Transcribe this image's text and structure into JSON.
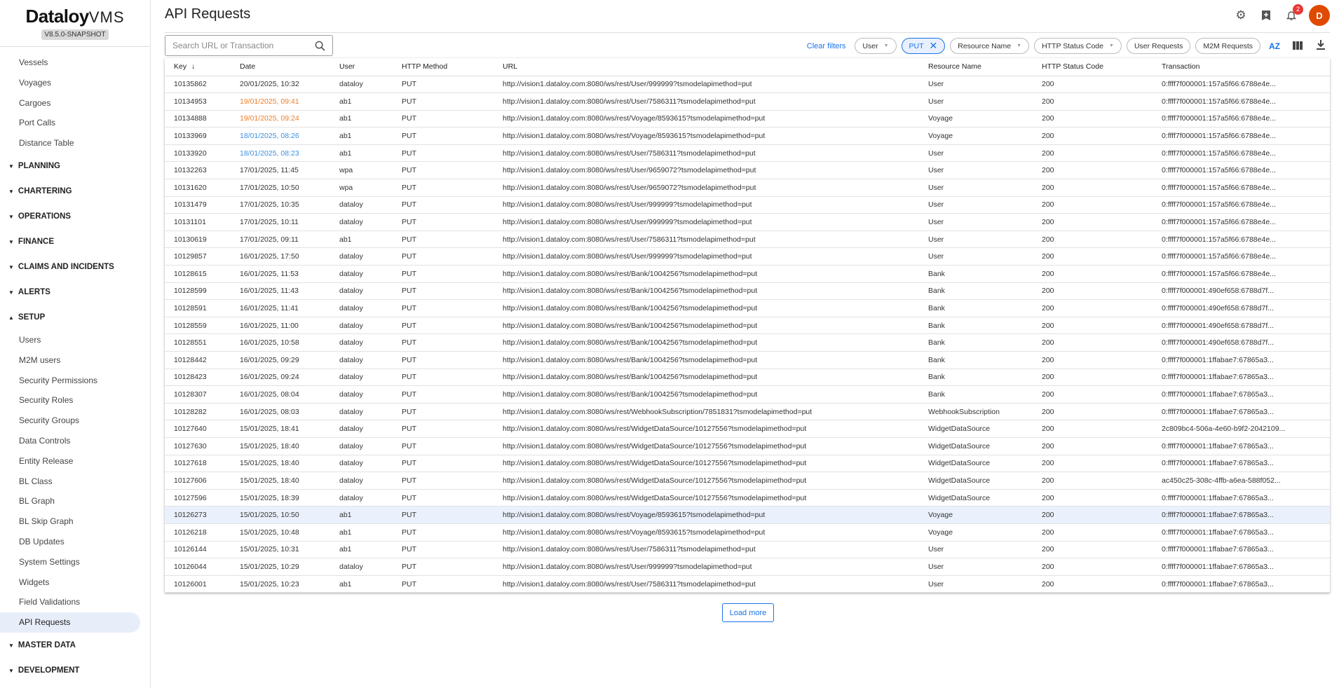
{
  "brand": {
    "name": "Dataloy",
    "suffix": "VMS",
    "version": "V8.5.0-SNAPSHOT"
  },
  "sidebar": {
    "items": [
      "Vessels",
      "Voyages",
      "Cargoes",
      "Port Calls",
      "Distance Table"
    ],
    "sections": [
      "PLANNING",
      "CHARTERING",
      "OPERATIONS",
      "FINANCE",
      "CLAIMS AND INCIDENTS",
      "ALERTS",
      "SETUP"
    ],
    "setup_items": [
      "Users",
      "M2M users",
      "Security Permissions",
      "Security Roles",
      "Security Groups",
      "Data Controls",
      "Entity Release",
      "BL Class",
      "BL Graph",
      "BL Skip Graph",
      "DB Updates",
      "System Settings",
      "Widgets",
      "Field Validations",
      "API Requests"
    ],
    "active": "API Requests",
    "bottom_sections": [
      "MASTER DATA",
      "DEVELOPMENT"
    ]
  },
  "header": {
    "title": "API Requests",
    "notification_count": "2",
    "avatar_initial": "D"
  },
  "filters": {
    "search_placeholder": "Search URL or Transaction",
    "clear": "Clear filters",
    "user": "User",
    "method_selected": "PUT",
    "resource": "Resource Name",
    "status": "HTTP Status Code",
    "user_requests": "User Requests",
    "m2m_requests": "M2M Requests",
    "sort_icon": "AZ"
  },
  "table": {
    "columns": [
      "Key",
      "Date",
      "User",
      "HTTP Method",
      "URL",
      "Resource Name",
      "HTTP Status Code",
      "Transaction"
    ],
    "sort_column": "Key",
    "sort_direction": "descending",
    "rows": [
      [
        "10135862",
        "20/01/2025, 10:32",
        "dataloy",
        "PUT",
        "http://vision1.dataloy.com:8080/ws/rest/User/999999?tsmodelapimethod=put",
        "User",
        "200",
        "0:ffff7f000001:157a5f66:6788e4e..."
      ],
      [
        "10134953",
        "19/01/2025, 09:41",
        "ab1",
        "PUT",
        "http://vision1.dataloy.com:8080/ws/rest/User/7586311?tsmodelapimethod=put",
        "User",
        "200",
        "0:ffff7f000001:157a5f66:6788e4e..."
      ],
      [
        "10134888",
        "19/01/2025, 09:24",
        "ab1",
        "PUT",
        "http://vision1.dataloy.com:8080/ws/rest/Voyage/8593615?tsmodelapimethod=put",
        "Voyage",
        "200",
        "0:ffff7f000001:157a5f66:6788e4e..."
      ],
      [
        "10133969",
        "18/01/2025, 08:26",
        "ab1",
        "PUT",
        "http://vision1.dataloy.com:8080/ws/rest/Voyage/8593615?tsmodelapimethod=put",
        "Voyage",
        "200",
        "0:ffff7f000001:157a5f66:6788e4e..."
      ],
      [
        "10133920",
        "18/01/2025, 08:23",
        "ab1",
        "PUT",
        "http://vision1.dataloy.com:8080/ws/rest/User/7586311?tsmodelapimethod=put",
        "User",
        "200",
        "0:ffff7f000001:157a5f66:6788e4e..."
      ],
      [
        "10132263",
        "17/01/2025, 11:45",
        "wpa",
        "PUT",
        "http://vision1.dataloy.com:8080/ws/rest/User/9659072?tsmodelapimethod=put",
        "User",
        "200",
        "0:ffff7f000001:157a5f66:6788e4e..."
      ],
      [
        "10131620",
        "17/01/2025, 10:50",
        "wpa",
        "PUT",
        "http://vision1.dataloy.com:8080/ws/rest/User/9659072?tsmodelapimethod=put",
        "User",
        "200",
        "0:ffff7f000001:157a5f66:6788e4e..."
      ],
      [
        "10131479",
        "17/01/2025, 10:35",
        "dataloy",
        "PUT",
        "http://vision1.dataloy.com:8080/ws/rest/User/999999?tsmodelapimethod=put",
        "User",
        "200",
        "0:ffff7f000001:157a5f66:6788e4e..."
      ],
      [
        "10131101",
        "17/01/2025, 10:11",
        "dataloy",
        "PUT",
        "http://vision1.dataloy.com:8080/ws/rest/User/999999?tsmodelapimethod=put",
        "User",
        "200",
        "0:ffff7f000001:157a5f66:6788e4e..."
      ],
      [
        "10130619",
        "17/01/2025, 09:11",
        "ab1",
        "PUT",
        "http://vision1.dataloy.com:8080/ws/rest/User/7586311?tsmodelapimethod=put",
        "User",
        "200",
        "0:ffff7f000001:157a5f66:6788e4e..."
      ],
      [
        "10129857",
        "16/01/2025, 17:50",
        "dataloy",
        "PUT",
        "http://vision1.dataloy.com:8080/ws/rest/User/999999?tsmodelapimethod=put",
        "User",
        "200",
        "0:ffff7f000001:157a5f66:6788e4e..."
      ],
      [
        "10128615",
        "16/01/2025, 11:53",
        "dataloy",
        "PUT",
        "http://vision1.dataloy.com:8080/ws/rest/Bank/1004256?tsmodelapimethod=put",
        "Bank",
        "200",
        "0:ffff7f000001:157a5f66:6788e4e..."
      ],
      [
        "10128599",
        "16/01/2025, 11:43",
        "dataloy",
        "PUT",
        "http://vision1.dataloy.com:8080/ws/rest/Bank/1004256?tsmodelapimethod=put",
        "Bank",
        "200",
        "0:ffff7f000001:490ef658:6788d7f..."
      ],
      [
        "10128591",
        "16/01/2025, 11:41",
        "dataloy",
        "PUT",
        "http://vision1.dataloy.com:8080/ws/rest/Bank/1004256?tsmodelapimethod=put",
        "Bank",
        "200",
        "0:ffff7f000001:490ef658:6788d7f..."
      ],
      [
        "10128559",
        "16/01/2025, 11:00",
        "dataloy",
        "PUT",
        "http://vision1.dataloy.com:8080/ws/rest/Bank/1004256?tsmodelapimethod=put",
        "Bank",
        "200",
        "0:ffff7f000001:490ef658:6788d7f..."
      ],
      [
        "10128551",
        "16/01/2025, 10:58",
        "dataloy",
        "PUT",
        "http://vision1.dataloy.com:8080/ws/rest/Bank/1004256?tsmodelapimethod=put",
        "Bank",
        "200",
        "0:ffff7f000001:490ef658:6788d7f..."
      ],
      [
        "10128442",
        "16/01/2025, 09:29",
        "dataloy",
        "PUT",
        "http://vision1.dataloy.com:8080/ws/rest/Bank/1004256?tsmodelapimethod=put",
        "Bank",
        "200",
        "0:ffff7f000001:1ffabae7:67865a3..."
      ],
      [
        "10128423",
        "16/01/2025, 09:24",
        "dataloy",
        "PUT",
        "http://vision1.dataloy.com:8080/ws/rest/Bank/1004256?tsmodelapimethod=put",
        "Bank",
        "200",
        "0:ffff7f000001:1ffabae7:67865a3..."
      ],
      [
        "10128307",
        "16/01/2025, 08:04",
        "dataloy",
        "PUT",
        "http://vision1.dataloy.com:8080/ws/rest/Bank/1004256?tsmodelapimethod=put",
        "Bank",
        "200",
        "0:ffff7f000001:1ffabae7:67865a3..."
      ],
      [
        "10128282",
        "16/01/2025, 08:03",
        "dataloy",
        "PUT",
        "http://vision1.dataloy.com:8080/ws/rest/WebhookSubscription/7851831?tsmodelapimethod=put",
        "WebhookSubscription",
        "200",
        "0:ffff7f000001:1ffabae7:67865a3..."
      ],
      [
        "10127640",
        "15/01/2025, 18:41",
        "dataloy",
        "PUT",
        "http://vision1.dataloy.com:8080/ws/rest/WidgetDataSource/10127556?tsmodelapimethod=put",
        "WidgetDataSource",
        "200",
        "2c809bc4-506a-4e60-b9f2-2042109..."
      ],
      [
        "10127630",
        "15/01/2025, 18:40",
        "dataloy",
        "PUT",
        "http://vision1.dataloy.com:8080/ws/rest/WidgetDataSource/10127556?tsmodelapimethod=put",
        "WidgetDataSource",
        "200",
        "0:ffff7f000001:1ffabae7:67865a3..."
      ],
      [
        "10127618",
        "15/01/2025, 18:40",
        "dataloy",
        "PUT",
        "http://vision1.dataloy.com:8080/ws/rest/WidgetDataSource/10127556?tsmodelapimethod=put",
        "WidgetDataSource",
        "200",
        "0:ffff7f000001:1ffabae7:67865a3..."
      ],
      [
        "10127606",
        "15/01/2025, 18:40",
        "dataloy",
        "PUT",
        "http://vision1.dataloy.com:8080/ws/rest/WidgetDataSource/10127556?tsmodelapimethod=put",
        "WidgetDataSource",
        "200",
        "ac450c25-308c-4ffb-a6ea-588f052..."
      ],
      [
        "10127596",
        "15/01/2025, 18:39",
        "dataloy",
        "PUT",
        "http://vision1.dataloy.com:8080/ws/rest/WidgetDataSource/10127556?tsmodelapimethod=put",
        "WidgetDataSource",
        "200",
        "0:ffff7f000001:1ffabae7:67865a3..."
      ],
      [
        "10126273",
        "15/01/2025, 10:50",
        "ab1",
        "PUT",
        "http://vision1.dataloy.com:8080/ws/rest/Voyage/8593615?tsmodelapimethod=put",
        "Voyage",
        "200",
        "0:ffff7f000001:1ffabae7:67865a3..."
      ],
      [
        "10126218",
        "15/01/2025, 10:48",
        "ab1",
        "PUT",
        "http://vision1.dataloy.com:8080/ws/rest/Voyage/8593615?tsmodelapimethod=put",
        "Voyage",
        "200",
        "0:ffff7f000001:1ffabae7:67865a3..."
      ],
      [
        "10126144",
        "15/01/2025, 10:31",
        "ab1",
        "PUT",
        "http://vision1.dataloy.com:8080/ws/rest/User/7586311?tsmodelapimethod=put",
        "User",
        "200",
        "0:ffff7f000001:1ffabae7:67865a3..."
      ],
      [
        "10126044",
        "15/01/2025, 10:29",
        "dataloy",
        "PUT",
        "http://vision1.dataloy.com:8080/ws/rest/User/999999?tsmodelapimethod=put",
        "User",
        "200",
        "0:ffff7f000001:1ffabae7:67865a3..."
      ],
      [
        "10126001",
        "15/01/2025, 10:23",
        "ab1",
        "PUT",
        "http://vision1.dataloy.com:8080/ws/rest/User/7586311?tsmodelapimethod=put",
        "User",
        "200",
        "0:ffff7f000001:1ffabae7:67865a3..."
      ]
    ],
    "date_colors": {
      "1": "#f07c24",
      "2": "#f07c24",
      "3": "#3d8fe0",
      "4": "#3d8fe0"
    },
    "highlighted_row": "10126273"
  },
  "load_more": "Load more"
}
